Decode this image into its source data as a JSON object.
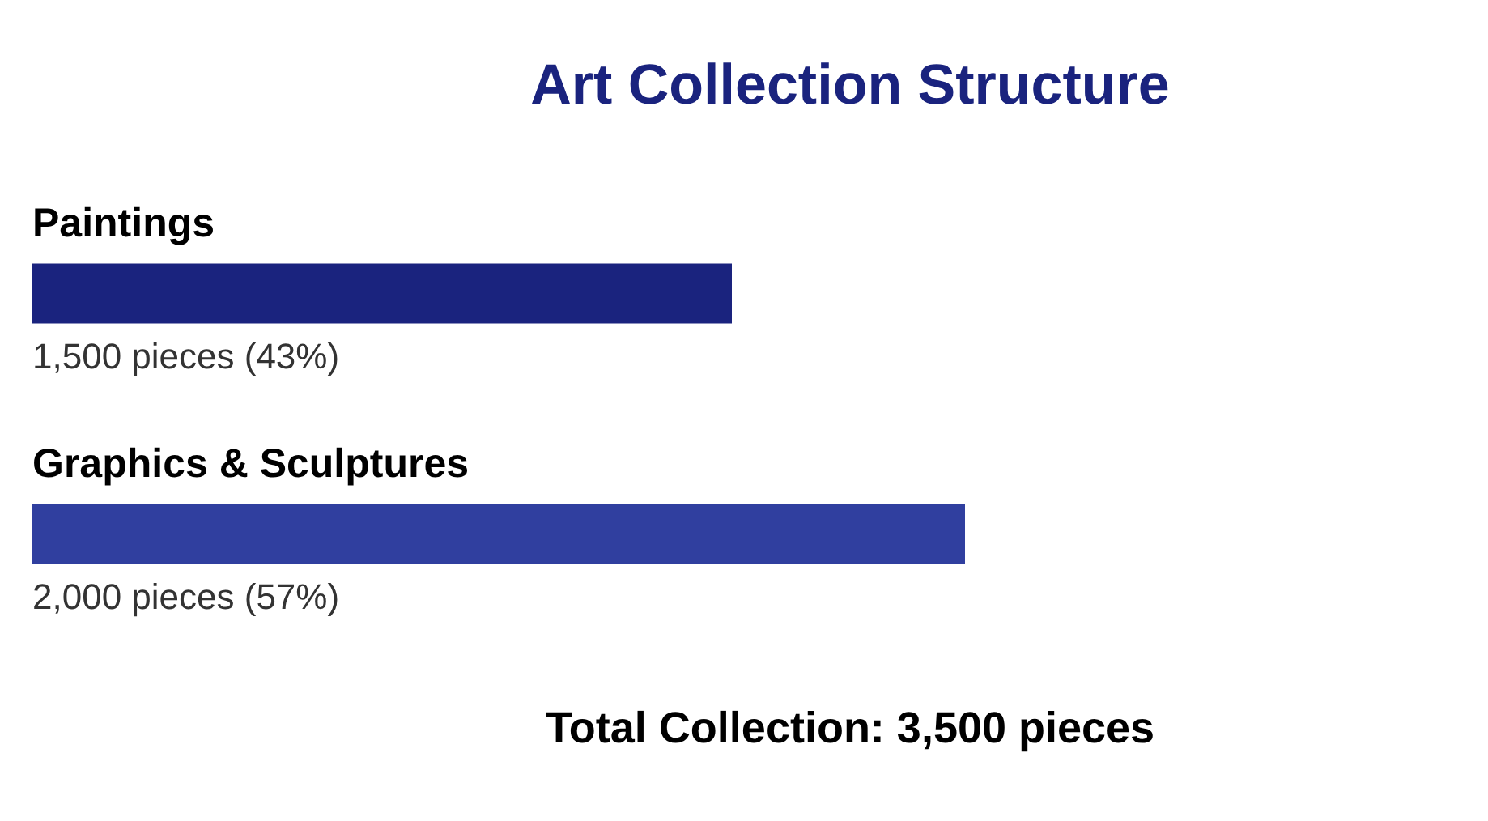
{
  "chart_data": {
    "type": "bar",
    "orientation": "horizontal",
    "title": "Art Collection Structure",
    "categories": [
      "Paintings",
      "Graphics & Sculptures"
    ],
    "values": [
      1500,
      2000
    ],
    "colors": [
      "#1a237e",
      "#303f9f"
    ],
    "value_labels": [
      "1,500 pieces (43%)",
      "2,000 pieces (57%)"
    ],
    "annotations": [
      "Total Collection: 3,500 pieces"
    ],
    "tick_labels": "y"
  }
}
